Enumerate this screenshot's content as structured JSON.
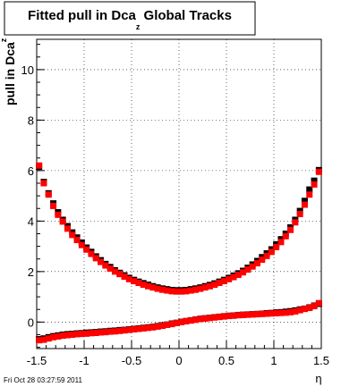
{
  "chart_data": {
    "type": "scatter",
    "title": "Fitted pull in Dca",
    "title_sub": "z",
    "title_suffix": " Global Tracks",
    "ylabel": "pull in Dca",
    "ylabel_sub": "z",
    "xlabel": "η",
    "xlim": [
      -1.5,
      1.5
    ],
    "ylim": [
      -1.05,
      11.2
    ],
    "x_ticks": [
      -1.5,
      -1,
      -0.5,
      0,
      0.5,
      1,
      1.5
    ],
    "x_tick_labels": [
      "-1.5",
      "-1",
      "-0.5",
      "0",
      "0.5",
      "1",
      "1.5"
    ],
    "y_ticks": [
      0,
      2,
      4,
      6,
      8,
      10
    ],
    "y_tick_labels": [
      "0",
      "2",
      "4",
      "6",
      "8",
      "10"
    ],
    "grid": true,
    "footer": "Fri Oct 28 03:27:59 2011",
    "colors": {
      "black_series": "#000000",
      "red_series": "#ff0000"
    },
    "series": [
      {
        "marker": "square-black",
        "x": [
          -1.475,
          -1.425,
          -1.375,
          -1.325,
          -1.275,
          -1.225,
          -1.175,
          -1.125,
          -1.075,
          -1.025,
          -0.975,
          -0.925,
          -0.875,
          -0.825,
          -0.775,
          -0.725,
          -0.675,
          -0.625,
          -0.575,
          -0.525,
          -0.475,
          -0.425,
          -0.375,
          -0.325,
          -0.275,
          -0.225,
          -0.175,
          -0.125,
          -0.075,
          -0.025,
          0.025,
          0.075,
          0.125,
          0.175,
          0.225,
          0.275,
          0.325,
          0.375,
          0.425,
          0.475,
          0.525,
          0.575,
          0.625,
          0.675,
          0.725,
          0.775,
          0.825,
          0.875,
          0.925,
          0.975,
          1.025,
          1.075,
          1.125,
          1.175,
          1.225,
          1.275,
          1.325,
          1.375,
          1.425,
          1.475
        ],
        "y": [
          6.15,
          5.55,
          5.1,
          4.7,
          4.35,
          4.05,
          3.8,
          3.55,
          3.35,
          3.15,
          2.95,
          2.78,
          2.6,
          2.45,
          2.3,
          2.18,
          2.05,
          1.95,
          1.85,
          1.75,
          1.67,
          1.6,
          1.54,
          1.48,
          1.42,
          1.37,
          1.33,
          1.3,
          1.27,
          1.26,
          1.26,
          1.27,
          1.3,
          1.33,
          1.37,
          1.42,
          1.47,
          1.53,
          1.6,
          1.67,
          1.75,
          1.84,
          1.93,
          2.03,
          2.15,
          2.28,
          2.42,
          2.57,
          2.72,
          2.88,
          3.08,
          3.28,
          3.5,
          3.75,
          4.05,
          4.4,
          4.8,
          5.25,
          5.6,
          6.02
        ]
      },
      {
        "marker": "square-red",
        "x": [
          -1.475,
          -1.425,
          -1.375,
          -1.325,
          -1.275,
          -1.225,
          -1.175,
          -1.125,
          -1.075,
          -1.025,
          -0.975,
          -0.925,
          -0.875,
          -0.825,
          -0.775,
          -0.725,
          -0.675,
          -0.625,
          -0.575,
          -0.525,
          -0.475,
          -0.425,
          -0.375,
          -0.325,
          -0.275,
          -0.225,
          -0.175,
          -0.125,
          -0.075,
          -0.025,
          0.025,
          0.075,
          0.125,
          0.175,
          0.225,
          0.275,
          0.325,
          0.375,
          0.425,
          0.475,
          0.525,
          0.575,
          0.625,
          0.675,
          0.725,
          0.775,
          0.825,
          0.875,
          0.925,
          0.975,
          1.025,
          1.075,
          1.125,
          1.175,
          1.225,
          1.275,
          1.325,
          1.375,
          1.425,
          1.475
        ],
        "y": [
          6.2,
          5.5,
          5.05,
          4.6,
          4.25,
          3.98,
          3.7,
          3.45,
          3.25,
          3.05,
          2.87,
          2.7,
          2.53,
          2.38,
          2.24,
          2.12,
          2.0,
          1.9,
          1.8,
          1.7,
          1.62,
          1.55,
          1.48,
          1.42,
          1.37,
          1.32,
          1.28,
          1.25,
          1.22,
          1.21,
          1.21,
          1.22,
          1.25,
          1.28,
          1.32,
          1.37,
          1.42,
          1.48,
          1.55,
          1.62,
          1.7,
          1.78,
          1.87,
          1.97,
          2.08,
          2.2,
          2.33,
          2.47,
          2.62,
          2.78,
          2.97,
          3.17,
          3.4,
          3.65,
          3.95,
          4.28,
          4.65,
          5.05,
          5.45,
          5.95
        ]
      },
      {
        "marker": "square-black",
        "x": [
          -1.475,
          -1.425,
          -1.375,
          -1.325,
          -1.275,
          -1.225,
          -1.175,
          -1.125,
          -1.075,
          -1.025,
          -0.975,
          -0.925,
          -0.875,
          -0.825,
          -0.775,
          -0.725,
          -0.675,
          -0.625,
          -0.575,
          -0.525,
          -0.475,
          -0.425,
          -0.375,
          -0.325,
          -0.275,
          -0.225,
          -0.175,
          -0.125,
          -0.075,
          -0.025,
          0.025,
          0.075,
          0.125,
          0.175,
          0.225,
          0.275,
          0.325,
          0.375,
          0.425,
          0.475,
          0.525,
          0.575,
          0.625,
          0.675,
          0.725,
          0.775,
          0.825,
          0.875,
          0.925,
          0.975,
          1.025,
          1.075,
          1.125,
          1.175,
          1.225,
          1.275,
          1.325,
          1.375,
          1.425,
          1.475
        ],
        "y": [
          -0.68,
          -0.65,
          -0.6,
          -0.56,
          -0.53,
          -0.5,
          -0.48,
          -0.47,
          -0.45,
          -0.44,
          -0.42,
          -0.41,
          -0.4,
          -0.38,
          -0.37,
          -0.35,
          -0.34,
          -0.32,
          -0.31,
          -0.29,
          -0.27,
          -0.25,
          -0.23,
          -0.21,
          -0.19,
          -0.16,
          -0.13,
          -0.1,
          -0.06,
          -0.03,
          0.01,
          0.04,
          0.07,
          0.1,
          0.13,
          0.15,
          0.17,
          0.19,
          0.21,
          0.23,
          0.25,
          0.26,
          0.28,
          0.29,
          0.3,
          0.31,
          0.32,
          0.33,
          0.35,
          0.36,
          0.38,
          0.39,
          0.41,
          0.43,
          0.46,
          0.5,
          0.53,
          0.58,
          0.65,
          0.72
        ]
      },
      {
        "marker": "square-red",
        "x": [
          -1.475,
          -1.425,
          -1.375,
          -1.325,
          -1.275,
          -1.225,
          -1.175,
          -1.125,
          -1.075,
          -1.025,
          -0.975,
          -0.925,
          -0.875,
          -0.825,
          -0.775,
          -0.725,
          -0.675,
          -0.625,
          -0.575,
          -0.525,
          -0.475,
          -0.425,
          -0.375,
          -0.325,
          -0.275,
          -0.225,
          -0.175,
          -0.125,
          -0.075,
          -0.025,
          0.025,
          0.075,
          0.125,
          0.175,
          0.225,
          0.275,
          0.325,
          0.375,
          0.425,
          0.475,
          0.525,
          0.575,
          0.625,
          0.675,
          0.725,
          0.775,
          0.825,
          0.875,
          0.925,
          0.975,
          1.025,
          1.075,
          1.125,
          1.175,
          1.225,
          1.275,
          1.325,
          1.375,
          1.425,
          1.475
        ],
        "y": [
          -0.72,
          -0.7,
          -0.65,
          -0.6,
          -0.57,
          -0.54,
          -0.52,
          -0.5,
          -0.48,
          -0.47,
          -0.46,
          -0.44,
          -0.43,
          -0.41,
          -0.4,
          -0.38,
          -0.37,
          -0.35,
          -0.33,
          -0.31,
          -0.29,
          -0.27,
          -0.25,
          -0.23,
          -0.21,
          -0.18,
          -0.15,
          -0.11,
          -0.08,
          -0.04,
          0.0,
          0.03,
          0.06,
          0.09,
          0.12,
          0.14,
          0.16,
          0.18,
          0.2,
          0.22,
          0.24,
          0.25,
          0.27,
          0.28,
          0.29,
          0.3,
          0.31,
          0.32,
          0.33,
          0.34,
          0.35,
          0.36,
          0.37,
          0.39,
          0.42,
          0.47,
          0.52,
          0.56,
          0.63,
          0.75
        ]
      }
    ]
  }
}
